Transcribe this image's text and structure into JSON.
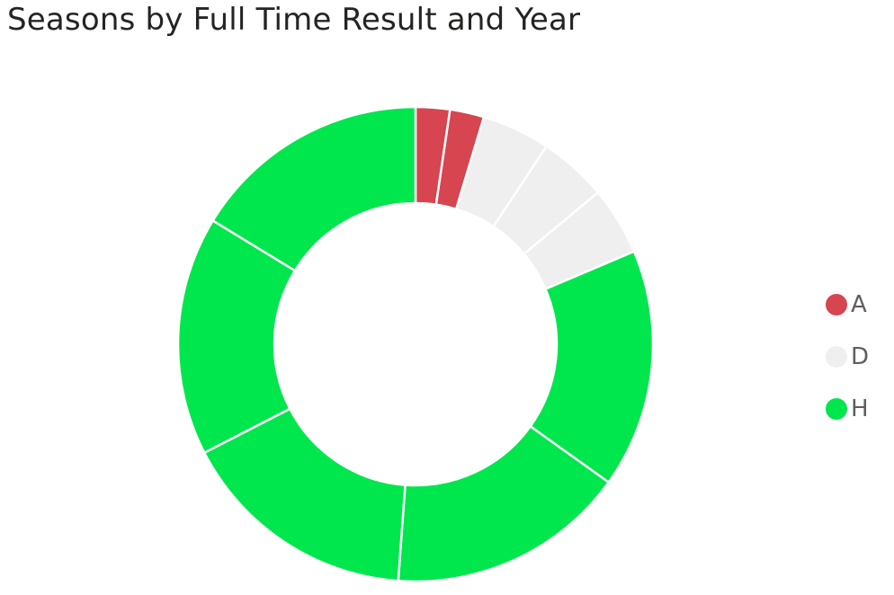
{
  "chart_data": {
    "type": "pie",
    "title": "Seasons by Full Time Result and Year",
    "legend_position": "right",
    "categories": [
      "A",
      "A",
      "D",
      "D",
      "D",
      "H",
      "H",
      "H",
      "H",
      "H"
    ],
    "values": [
      1,
      1,
      2,
      2,
      2,
      7,
      7,
      7,
      7,
      7
    ],
    "legend": [
      {
        "label": "A",
        "color": "#d64550"
      },
      {
        "label": "D",
        "color": "#efefef"
      },
      {
        "label": "H",
        "color": "#00e64d"
      }
    ],
    "colors": {
      "A": "#d64550",
      "D": "#efefef",
      "H": "#00e64d"
    }
  }
}
